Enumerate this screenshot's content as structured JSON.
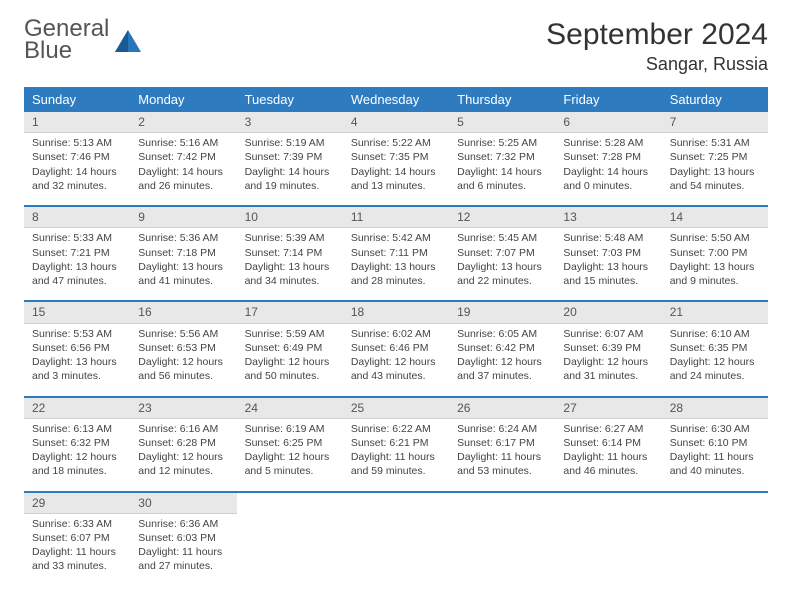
{
  "logo": {
    "line1": "General",
    "line2": "Blue"
  },
  "title": "September 2024",
  "location": "Sangar, Russia",
  "colors": {
    "header_bg": "#2f7bbf",
    "header_text": "#ffffff",
    "day_num_bg": "#e8e8e8",
    "row_border": "#2f7bbf",
    "logo_blue": "#2876b8"
  },
  "weekdays": [
    "Sunday",
    "Monday",
    "Tuesday",
    "Wednesday",
    "Thursday",
    "Friday",
    "Saturday"
  ],
  "days": [
    {
      "n": "1",
      "sr": "Sunrise: 5:13 AM",
      "ss": "Sunset: 7:46 PM",
      "dl": "Daylight: 14 hours and 32 minutes."
    },
    {
      "n": "2",
      "sr": "Sunrise: 5:16 AM",
      "ss": "Sunset: 7:42 PM",
      "dl": "Daylight: 14 hours and 26 minutes."
    },
    {
      "n": "3",
      "sr": "Sunrise: 5:19 AM",
      "ss": "Sunset: 7:39 PM",
      "dl": "Daylight: 14 hours and 19 minutes."
    },
    {
      "n": "4",
      "sr": "Sunrise: 5:22 AM",
      "ss": "Sunset: 7:35 PM",
      "dl": "Daylight: 14 hours and 13 minutes."
    },
    {
      "n": "5",
      "sr": "Sunrise: 5:25 AM",
      "ss": "Sunset: 7:32 PM",
      "dl": "Daylight: 14 hours and 6 minutes."
    },
    {
      "n": "6",
      "sr": "Sunrise: 5:28 AM",
      "ss": "Sunset: 7:28 PM",
      "dl": "Daylight: 14 hours and 0 minutes."
    },
    {
      "n": "7",
      "sr": "Sunrise: 5:31 AM",
      "ss": "Sunset: 7:25 PM",
      "dl": "Daylight: 13 hours and 54 minutes."
    },
    {
      "n": "8",
      "sr": "Sunrise: 5:33 AM",
      "ss": "Sunset: 7:21 PM",
      "dl": "Daylight: 13 hours and 47 minutes."
    },
    {
      "n": "9",
      "sr": "Sunrise: 5:36 AM",
      "ss": "Sunset: 7:18 PM",
      "dl": "Daylight: 13 hours and 41 minutes."
    },
    {
      "n": "10",
      "sr": "Sunrise: 5:39 AM",
      "ss": "Sunset: 7:14 PM",
      "dl": "Daylight: 13 hours and 34 minutes."
    },
    {
      "n": "11",
      "sr": "Sunrise: 5:42 AM",
      "ss": "Sunset: 7:11 PM",
      "dl": "Daylight: 13 hours and 28 minutes."
    },
    {
      "n": "12",
      "sr": "Sunrise: 5:45 AM",
      "ss": "Sunset: 7:07 PM",
      "dl": "Daylight: 13 hours and 22 minutes."
    },
    {
      "n": "13",
      "sr": "Sunrise: 5:48 AM",
      "ss": "Sunset: 7:03 PM",
      "dl": "Daylight: 13 hours and 15 minutes."
    },
    {
      "n": "14",
      "sr": "Sunrise: 5:50 AM",
      "ss": "Sunset: 7:00 PM",
      "dl": "Daylight: 13 hours and 9 minutes."
    },
    {
      "n": "15",
      "sr": "Sunrise: 5:53 AM",
      "ss": "Sunset: 6:56 PM",
      "dl": "Daylight: 13 hours and 3 minutes."
    },
    {
      "n": "16",
      "sr": "Sunrise: 5:56 AM",
      "ss": "Sunset: 6:53 PM",
      "dl": "Daylight: 12 hours and 56 minutes."
    },
    {
      "n": "17",
      "sr": "Sunrise: 5:59 AM",
      "ss": "Sunset: 6:49 PM",
      "dl": "Daylight: 12 hours and 50 minutes."
    },
    {
      "n": "18",
      "sr": "Sunrise: 6:02 AM",
      "ss": "Sunset: 6:46 PM",
      "dl": "Daylight: 12 hours and 43 minutes."
    },
    {
      "n": "19",
      "sr": "Sunrise: 6:05 AM",
      "ss": "Sunset: 6:42 PM",
      "dl": "Daylight: 12 hours and 37 minutes."
    },
    {
      "n": "20",
      "sr": "Sunrise: 6:07 AM",
      "ss": "Sunset: 6:39 PM",
      "dl": "Daylight: 12 hours and 31 minutes."
    },
    {
      "n": "21",
      "sr": "Sunrise: 6:10 AM",
      "ss": "Sunset: 6:35 PM",
      "dl": "Daylight: 12 hours and 24 minutes."
    },
    {
      "n": "22",
      "sr": "Sunrise: 6:13 AM",
      "ss": "Sunset: 6:32 PM",
      "dl": "Daylight: 12 hours and 18 minutes."
    },
    {
      "n": "23",
      "sr": "Sunrise: 6:16 AM",
      "ss": "Sunset: 6:28 PM",
      "dl": "Daylight: 12 hours and 12 minutes."
    },
    {
      "n": "24",
      "sr": "Sunrise: 6:19 AM",
      "ss": "Sunset: 6:25 PM",
      "dl": "Daylight: 12 hours and 5 minutes."
    },
    {
      "n": "25",
      "sr": "Sunrise: 6:22 AM",
      "ss": "Sunset: 6:21 PM",
      "dl": "Daylight: 11 hours and 59 minutes."
    },
    {
      "n": "26",
      "sr": "Sunrise: 6:24 AM",
      "ss": "Sunset: 6:17 PM",
      "dl": "Daylight: 11 hours and 53 minutes."
    },
    {
      "n": "27",
      "sr": "Sunrise: 6:27 AM",
      "ss": "Sunset: 6:14 PM",
      "dl": "Daylight: 11 hours and 46 minutes."
    },
    {
      "n": "28",
      "sr": "Sunrise: 6:30 AM",
      "ss": "Sunset: 6:10 PM",
      "dl": "Daylight: 11 hours and 40 minutes."
    },
    {
      "n": "29",
      "sr": "Sunrise: 6:33 AM",
      "ss": "Sunset: 6:07 PM",
      "dl": "Daylight: 11 hours and 33 minutes."
    },
    {
      "n": "30",
      "sr": "Sunrise: 6:36 AM",
      "ss": "Sunset: 6:03 PM",
      "dl": "Daylight: 11 hours and 27 minutes."
    }
  ],
  "start_weekday": 0,
  "rows": 5
}
